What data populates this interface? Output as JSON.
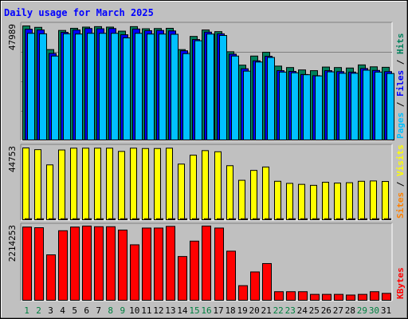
{
  "colors": {
    "background": "#c0c0c0",
    "bevel_light": "#ffffff",
    "bevel_dark": "#808080",
    "outer_border": "#000000",
    "grid": "#808080",
    "title": "#0000ff",
    "hits": "#00805c",
    "files": "#0000ff",
    "pages": "#00c0ff",
    "visits": "#ffff00",
    "sites": "#ff8000",
    "kbytes": "#ff0000",
    "weekday_label": "#000000",
    "weekend_label": "#008040"
  },
  "chart_data": {
    "type": "bar",
    "title": "Daily usage for March 2025",
    "categories": [
      "1",
      "2",
      "3",
      "4",
      "5",
      "6",
      "7",
      "8",
      "9",
      "10",
      "11",
      "12",
      "13",
      "14",
      "15",
      "16",
      "17",
      "18",
      "19",
      "20",
      "21",
      "22",
      "23",
      "24",
      "25",
      "26",
      "27",
      "28",
      "29",
      "30",
      "31"
    ],
    "weekend_days": [
      "1",
      "2",
      "8",
      "9",
      "15",
      "16",
      "22",
      "23",
      "29",
      "30"
    ],
    "panels": [
      {
        "id": "hits_files_pages",
        "axis_max_label": "47989",
        "ymax": 47989,
        "legend": [
          "Pages",
          "Files",
          "Hits"
        ],
        "series": [
          {
            "name": "Hits",
            "color_key": "hits",
            "values": [
              47989,
              47400,
              38100,
              46100,
              47000,
              47500,
              47700,
              47500,
              45800,
              47700,
              46800,
              46900,
              47000,
              38100,
              43600,
              46300,
              45600,
              37200,
              31600,
              35400,
              37000,
              31200,
              30600,
              29600,
              29300,
              30800,
              30600,
              30400,
              31700,
              30900,
              30700
            ]
          },
          {
            "name": "Files",
            "color_key": "files",
            "values": [
              46600,
              46300,
              36500,
              45300,
              46300,
              46900,
              46800,
              46900,
              44300,
              46700,
              46000,
              46100,
              45900,
              37600,
              42300,
              45400,
              44700,
              36200,
              30100,
              33400,
              35300,
              29300,
              29000,
              27700,
              27200,
              29300,
              28900,
              28700,
              30200,
              29400,
              28900
            ]
          },
          {
            "name": "Pages",
            "color_key": "pages",
            "values": [
              44900,
              44700,
              35400,
              44700,
              44600,
              44900,
              44900,
              44900,
              43000,
              44900,
              44600,
              44600,
              44500,
              36400,
              41800,
              44600,
              44000,
              35400,
              29100,
              32900,
              34800,
              28700,
              28400,
              27600,
              27100,
              28800,
              28200,
              28200,
              29500,
              28700,
              28100
            ]
          }
        ]
      },
      {
        "id": "visits_sites",
        "axis_max_label": "44753",
        "ymax": 44753,
        "legend": [
          "Sites",
          "Visits"
        ],
        "series": [
          {
            "name": "Visits",
            "color_key": "visits",
            "values": [
              44753,
              43700,
              34300,
              43500,
              44600,
              44600,
              44600,
              44600,
              42600,
              44600,
              44400,
              44400,
              44600,
              34800,
              40300,
              43100,
              42400,
              33800,
              24800,
              30900,
              33000,
              24200,
              22900,
              22300,
              21700,
              23600,
              23100,
              23300,
              24200,
              24400,
              24100
            ]
          },
          {
            "name": "Sites",
            "color_key": "sites",
            "values": [
              1100,
              1100,
              1100,
              1100,
              1100,
              1100,
              1100,
              1100,
              1100,
              1100,
              1100,
              1100,
              1100,
              1100,
              1100,
              1100,
              1100,
              1100,
              1100,
              1100,
              1100,
              1100,
              1100,
              1100,
              1100,
              1100,
              1100,
              1100,
              1100,
              1100,
              1100
            ]
          }
        ]
      },
      {
        "id": "kbytes",
        "axis_max_label": "2214253",
        "ymax": 2214253,
        "legend": [
          "KBytes"
        ],
        "series": [
          {
            "name": "KBytes",
            "color_key": "kbytes",
            "values": [
              2210000,
              2190000,
              1380000,
              2100000,
              2210000,
              2240000,
              2220000,
              2220000,
              2120000,
              1680000,
              2180000,
              2180000,
              2230000,
              1330000,
              1790000,
              2240000,
              2180000,
              1490000,
              460000,
              870000,
              1120000,
              280000,
              280000,
              280000,
              200000,
              200000,
              200000,
              180000,
              200000,
              280000,
              230000
            ]
          }
        ]
      }
    ]
  }
}
